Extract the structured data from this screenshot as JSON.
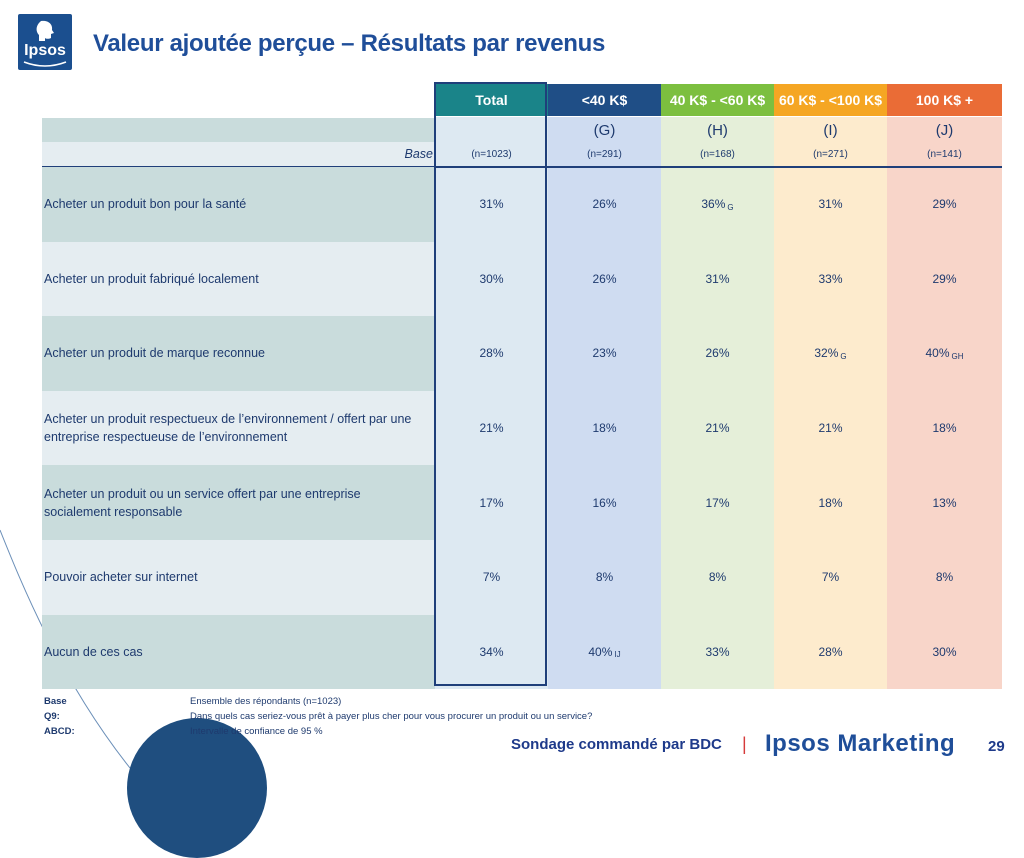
{
  "logo": {
    "text": "Ipsos"
  },
  "title": "Valeur ajoutée perçue – Résultats par revenus",
  "table": {
    "columns": [
      {
        "label": "Total",
        "letter": "",
        "base": "(n=1023)",
        "header_color": "#1a8489",
        "fill": "#dde9f2"
      },
      {
        "label": "<40 K$",
        "letter": "(G)",
        "base": "(n=291)",
        "header_color": "#1f4e86",
        "fill": "#cfdcf1"
      },
      {
        "label": "40 K$ - <60 K$",
        "letter": "(H)",
        "base": "(n=168)",
        "header_color": "#7cbf3f",
        "fill": "#e5efd9"
      },
      {
        "label": "60 K$ - <100 K$",
        "letter": "(I)",
        "base": "(n=271)",
        "header_color": "#f5a623",
        "fill": "#fdebcd"
      },
      {
        "label": "100 K$ +",
        "letter": "(J)",
        "base": "(n=141)",
        "header_color": "#ea6c36",
        "fill": "#f8d5c9"
      }
    ],
    "base_label": "Base",
    "rows": [
      {
        "label": "Acheter un produit bon pour la santé",
        "values": [
          {
            "v": "31%",
            "sig": ""
          },
          {
            "v": "26%",
            "sig": ""
          },
          {
            "v": "36%",
            "sig": "G"
          },
          {
            "v": "31%",
            "sig": ""
          },
          {
            "v": "29%",
            "sig": ""
          }
        ]
      },
      {
        "label": "Acheter un produit fabriqué localement",
        "values": [
          {
            "v": "30%",
            "sig": ""
          },
          {
            "v": "26%",
            "sig": ""
          },
          {
            "v": "31%",
            "sig": ""
          },
          {
            "v": "33%",
            "sig": ""
          },
          {
            "v": "29%",
            "sig": ""
          }
        ]
      },
      {
        "label": "Acheter un produit de marque reconnue",
        "values": [
          {
            "v": "28%",
            "sig": ""
          },
          {
            "v": "23%",
            "sig": ""
          },
          {
            "v": "26%",
            "sig": ""
          },
          {
            "v": "32%",
            "sig": "G"
          },
          {
            "v": "40%",
            "sig": "GH"
          }
        ]
      },
      {
        "label": "Acheter un produit respectueux de l’environnement / offert par une entreprise respectueuse de l’environnement",
        "values": [
          {
            "v": "21%",
            "sig": ""
          },
          {
            "v": "18%",
            "sig": ""
          },
          {
            "v": "21%",
            "sig": ""
          },
          {
            "v": "21%",
            "sig": ""
          },
          {
            "v": "18%",
            "sig": ""
          }
        ]
      },
      {
        "label": "Acheter un produit ou un service offert par une entreprise socialement responsable",
        "values": [
          {
            "v": "17%",
            "sig": ""
          },
          {
            "v": "16%",
            "sig": ""
          },
          {
            "v": "17%",
            "sig": ""
          },
          {
            "v": "18%",
            "sig": ""
          },
          {
            "v": "13%",
            "sig": ""
          }
        ]
      },
      {
        "label": "Pouvoir acheter sur internet",
        "values": [
          {
            "v": "7%",
            "sig": ""
          },
          {
            "v": "8%",
            "sig": ""
          },
          {
            "v": "8%",
            "sig": ""
          },
          {
            "v": "7%",
            "sig": ""
          },
          {
            "v": "8%",
            "sig": ""
          }
        ]
      },
      {
        "label": "Aucun de ces cas",
        "values": [
          {
            "v": "34%",
            "sig": ""
          },
          {
            "v": "40%",
            "sig": "IJ"
          },
          {
            "v": "33%",
            "sig": ""
          },
          {
            "v": "28%",
            "sig": ""
          },
          {
            "v": "30%",
            "sig": ""
          }
        ]
      }
    ]
  },
  "notes": [
    {
      "key": "Base",
      "text": "Ensemble des répondants (n=1023)"
    },
    {
      "key": "Q9:",
      "text": "Dans quels cas seriez-vous prêt à payer plus cher pour vous procurer un produit ou un service?"
    },
    {
      "key": "ABCD:",
      "text": "Intervalle de confiance de 95 %"
    }
  ],
  "footer": {
    "sponsor": "Sondage commandé par BDC",
    "separator": "|",
    "brand": "Ipsos Marketing",
    "page": "29"
  },
  "colors": {
    "title": "#1f4e99",
    "row_dark": "#c9dcdc",
    "row_light": "#e5edf1",
    "border": "#1f3f7a"
  }
}
